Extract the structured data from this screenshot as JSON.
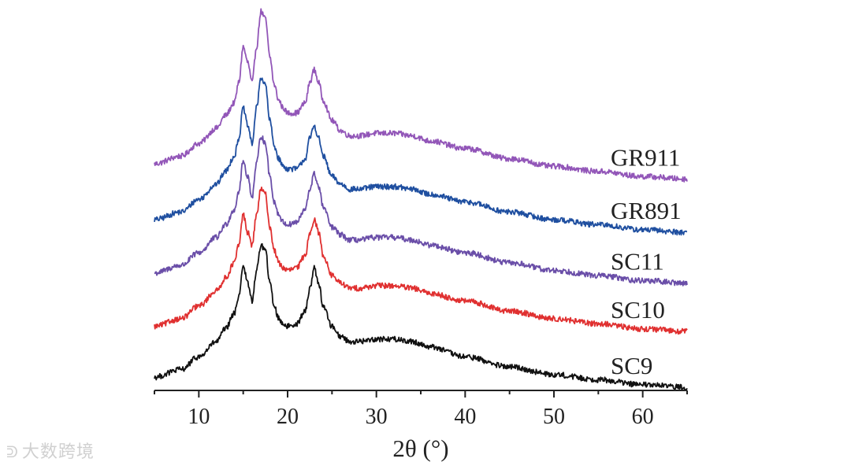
{
  "chart_data": {
    "type": "line",
    "xlabel": "2θ (°)",
    "ylabel": "",
    "xlim": [
      5,
      65
    ],
    "xticks": [
      10,
      20,
      30,
      40,
      50,
      60
    ],
    "grid": false,
    "legend": "labels at right end of each curve",
    "series": [
      {
        "name": "GR911",
        "color": "#9256b8",
        "x": [
          5,
          8,
          10,
          12,
          13,
          14,
          14.5,
          15,
          15.5,
          16,
          16.5,
          17,
          17.5,
          18,
          18.5,
          19,
          19.5,
          20,
          21,
          22,
          22.5,
          23,
          23.5,
          24,
          25,
          26,
          27,
          28,
          30,
          32,
          34,
          36,
          40,
          45,
          50,
          55,
          60,
          65
        ],
        "y": [
          0.88,
          0.91,
          0.96,
          1.02,
          1.07,
          1.12,
          1.2,
          1.34,
          1.28,
          1.2,
          1.34,
          1.48,
          1.45,
          1.3,
          1.19,
          1.13,
          1.1,
          1.08,
          1.08,
          1.12,
          1.2,
          1.25,
          1.2,
          1.13,
          1.05,
          1.01,
          0.99,
          0.99,
          1.0,
          1.0,
          0.99,
          0.97,
          0.94,
          0.9,
          0.87,
          0.85,
          0.83,
          0.82
        ]
      },
      {
        "name": "GR891",
        "color": "#1f4fa0",
        "x": [
          5,
          8,
          10,
          12,
          13,
          14,
          14.5,
          15,
          15.5,
          16,
          16.5,
          17,
          17.5,
          18,
          18.5,
          19,
          19.5,
          20,
          21,
          22,
          22.5,
          23,
          23.5,
          24,
          25,
          26,
          27,
          28,
          30,
          32,
          34,
          36,
          40,
          45,
          50,
          55,
          60,
          65
        ],
        "y": [
          0.66,
          0.69,
          0.74,
          0.8,
          0.85,
          0.91,
          0.98,
          1.1,
          1.03,
          0.96,
          1.1,
          1.22,
          1.19,
          1.05,
          0.95,
          0.9,
          0.87,
          0.86,
          0.86,
          0.9,
          0.98,
          1.03,
          0.98,
          0.91,
          0.83,
          0.8,
          0.78,
          0.78,
          0.79,
          0.79,
          0.78,
          0.76,
          0.73,
          0.69,
          0.66,
          0.64,
          0.62,
          0.61
        ]
      },
      {
        "name": "SC11",
        "color": "#6a4ea8",
        "x": [
          5,
          8,
          10,
          12,
          13,
          14,
          14.5,
          15,
          15.5,
          16,
          16.5,
          17,
          17.5,
          18,
          18.5,
          19,
          19.5,
          20,
          21,
          22,
          22.5,
          23,
          23.5,
          24,
          25,
          26,
          27,
          28,
          30,
          32,
          34,
          36,
          40,
          45,
          50,
          55,
          60,
          65
        ],
        "y": [
          0.45,
          0.48,
          0.53,
          0.59,
          0.64,
          0.7,
          0.77,
          0.89,
          0.83,
          0.75,
          0.88,
          0.99,
          0.96,
          0.83,
          0.73,
          0.68,
          0.65,
          0.64,
          0.65,
          0.7,
          0.78,
          0.84,
          0.79,
          0.71,
          0.63,
          0.6,
          0.58,
          0.58,
          0.59,
          0.59,
          0.58,
          0.56,
          0.53,
          0.49,
          0.46,
          0.44,
          0.42,
          0.41
        ]
      },
      {
        "name": "SC10",
        "color": "#e03030",
        "x": [
          5,
          8,
          10,
          12,
          13,
          14,
          14.5,
          15,
          15.5,
          16,
          16.5,
          17,
          17.5,
          18,
          18.5,
          19,
          19.5,
          20,
          21,
          22,
          22.5,
          23,
          23.5,
          24,
          25,
          26,
          27,
          28,
          30,
          32,
          34,
          36,
          40,
          45,
          50,
          55,
          60,
          65
        ],
        "y": [
          0.24,
          0.27,
          0.32,
          0.38,
          0.43,
          0.49,
          0.56,
          0.68,
          0.61,
          0.56,
          0.68,
          0.78,
          0.76,
          0.63,
          0.54,
          0.49,
          0.47,
          0.46,
          0.47,
          0.52,
          0.61,
          0.66,
          0.61,
          0.52,
          0.44,
          0.41,
          0.39,
          0.39,
          0.4,
          0.4,
          0.39,
          0.37,
          0.34,
          0.3,
          0.27,
          0.25,
          0.23,
          0.22
        ]
      },
      {
        "name": "SC9",
        "color": "#111111",
        "x": [
          5,
          8,
          10,
          12,
          13,
          14,
          14.5,
          15,
          15.5,
          16,
          16.5,
          17,
          17.5,
          18,
          18.5,
          19,
          19.5,
          20,
          21,
          22,
          22.5,
          23,
          23.5,
          24,
          25,
          26,
          27,
          28,
          30,
          32,
          34,
          36,
          40,
          45,
          50,
          55,
          60,
          65
        ],
        "y": [
          0.04,
          0.07,
          0.12,
          0.18,
          0.23,
          0.29,
          0.36,
          0.48,
          0.41,
          0.34,
          0.46,
          0.56,
          0.54,
          0.41,
          0.32,
          0.27,
          0.25,
          0.24,
          0.25,
          0.3,
          0.39,
          0.47,
          0.41,
          0.32,
          0.24,
          0.2,
          0.18,
          0.18,
          0.19,
          0.19,
          0.18,
          0.16,
          0.12,
          0.08,
          0.05,
          0.03,
          0.01,
          0.0
        ]
      }
    ]
  },
  "watermark": {
    "icon": "weibo-icon",
    "text": "大数跨境"
  }
}
